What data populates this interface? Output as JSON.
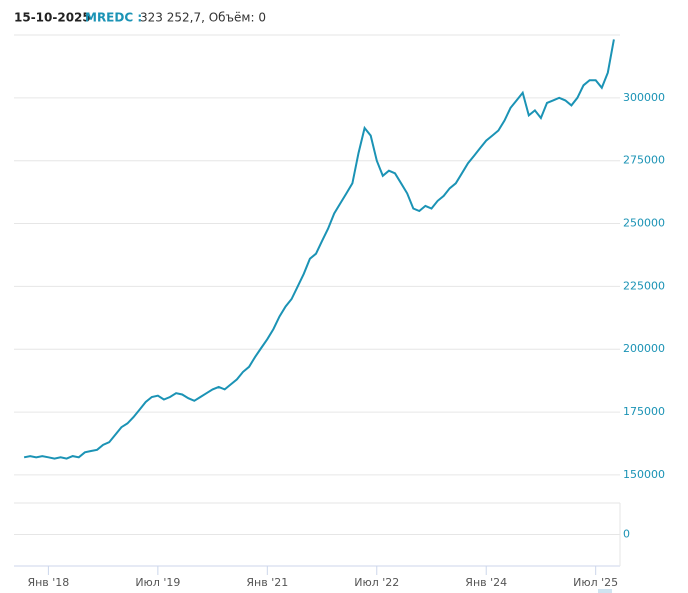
{
  "header": {
    "date": "15-10-2025",
    "symbol": "MREDC :",
    "quote": "323 252,7, Объём: 0"
  },
  "chart_data": [
    {
      "type": "line",
      "x": [
        "2017-09",
        "2017-10",
        "2017-11",
        "2017-12",
        "2018-01",
        "2018-02",
        "2018-03",
        "2018-04",
        "2018-05",
        "2018-06",
        "2018-07",
        "2018-08",
        "2018-09",
        "2018-10",
        "2018-11",
        "2018-12",
        "2019-01",
        "2019-02",
        "2019-03",
        "2019-04",
        "2019-05",
        "2019-06",
        "2019-07",
        "2019-08",
        "2019-09",
        "2019-10",
        "2019-11",
        "2019-12",
        "2020-01",
        "2020-02",
        "2020-03",
        "2020-04",
        "2020-05",
        "2020-06",
        "2020-07",
        "2020-08",
        "2020-09",
        "2020-10",
        "2020-11",
        "2020-12",
        "2021-01",
        "2021-02",
        "2021-03",
        "2021-04",
        "2021-05",
        "2021-06",
        "2021-07",
        "2021-08",
        "2021-09",
        "2021-10",
        "2021-11",
        "2021-12",
        "2022-01",
        "2022-02",
        "2022-03",
        "2022-04",
        "2022-05",
        "2022-06",
        "2022-07",
        "2022-08",
        "2022-09",
        "2022-10",
        "2022-11",
        "2022-12",
        "2023-01",
        "2023-02",
        "2023-03",
        "2023-04",
        "2023-05",
        "2023-06",
        "2023-07",
        "2023-08",
        "2023-09",
        "2023-10",
        "2023-11",
        "2023-12",
        "2024-01",
        "2024-02",
        "2024-03",
        "2024-04",
        "2024-05",
        "2024-06",
        "2024-07",
        "2024-08",
        "2024-09",
        "2024-10",
        "2024-11",
        "2024-12",
        "2025-01",
        "2025-02",
        "2025-03",
        "2025-04",
        "2025-05",
        "2025-06",
        "2025-07",
        "2025-08",
        "2025-09",
        "2025-10"
      ],
      "series": [
        {
          "name": "MREDC",
          "color": "#1b93b5",
          "values": [
            157000,
            157500,
            157000,
            157500,
            157000,
            156500,
            157000,
            156500,
            157500,
            157000,
            159000,
            159500,
            160000,
            162000,
            163000,
            166000,
            169000,
            170500,
            173000,
            176000,
            179000,
            181000,
            181500,
            180000,
            181000,
            182500,
            182000,
            180500,
            179500,
            181000,
            182500,
            184000,
            185000,
            184000,
            186000,
            188000,
            191000,
            193000,
            197000,
            200500,
            204000,
            208000,
            213000,
            217000,
            220000,
            225000,
            230000,
            236000,
            238000,
            243000,
            248000,
            254000,
            258000,
            262000,
            266000,
            278000,
            288000,
            285000,
            275000,
            269000,
            271000,
            270000,
            266000,
            262000,
            256000,
            255000,
            257000,
            256000,
            259000,
            261000,
            264000,
            266000,
            270000,
            274000,
            277000,
            280000,
            283000,
            285000,
            287000,
            291000,
            296000,
            299000,
            302000,
            293000,
            295000,
            292000,
            298000,
            299000,
            300000,
            299000,
            297000,
            300000,
            305000,
            307000,
            307000,
            304000,
            310000,
            323252.7
          ]
        }
      ],
      "xlim": [
        "2017-08",
        "2025-11"
      ],
      "xticks": [
        {
          "value": "2018-01",
          "label": "Янв '18"
        },
        {
          "value": "2019-07",
          "label": "Июл '19"
        },
        {
          "value": "2021-01",
          "label": "Янв '21"
        },
        {
          "value": "2022-07",
          "label": "Июл '22"
        },
        {
          "value": "2024-01",
          "label": "Янв '24"
        },
        {
          "value": "2025-07",
          "label": "Июл '25"
        }
      ],
      "ylim": [
        144000,
        325000
      ],
      "yticks": [
        150000,
        175000,
        200000,
        225000,
        250000,
        275000,
        300000
      ],
      "grid": true
    },
    {
      "type": "bar",
      "ylim": [
        -1,
        1
      ],
      "yticks": [
        0
      ],
      "grid": true
    }
  ]
}
